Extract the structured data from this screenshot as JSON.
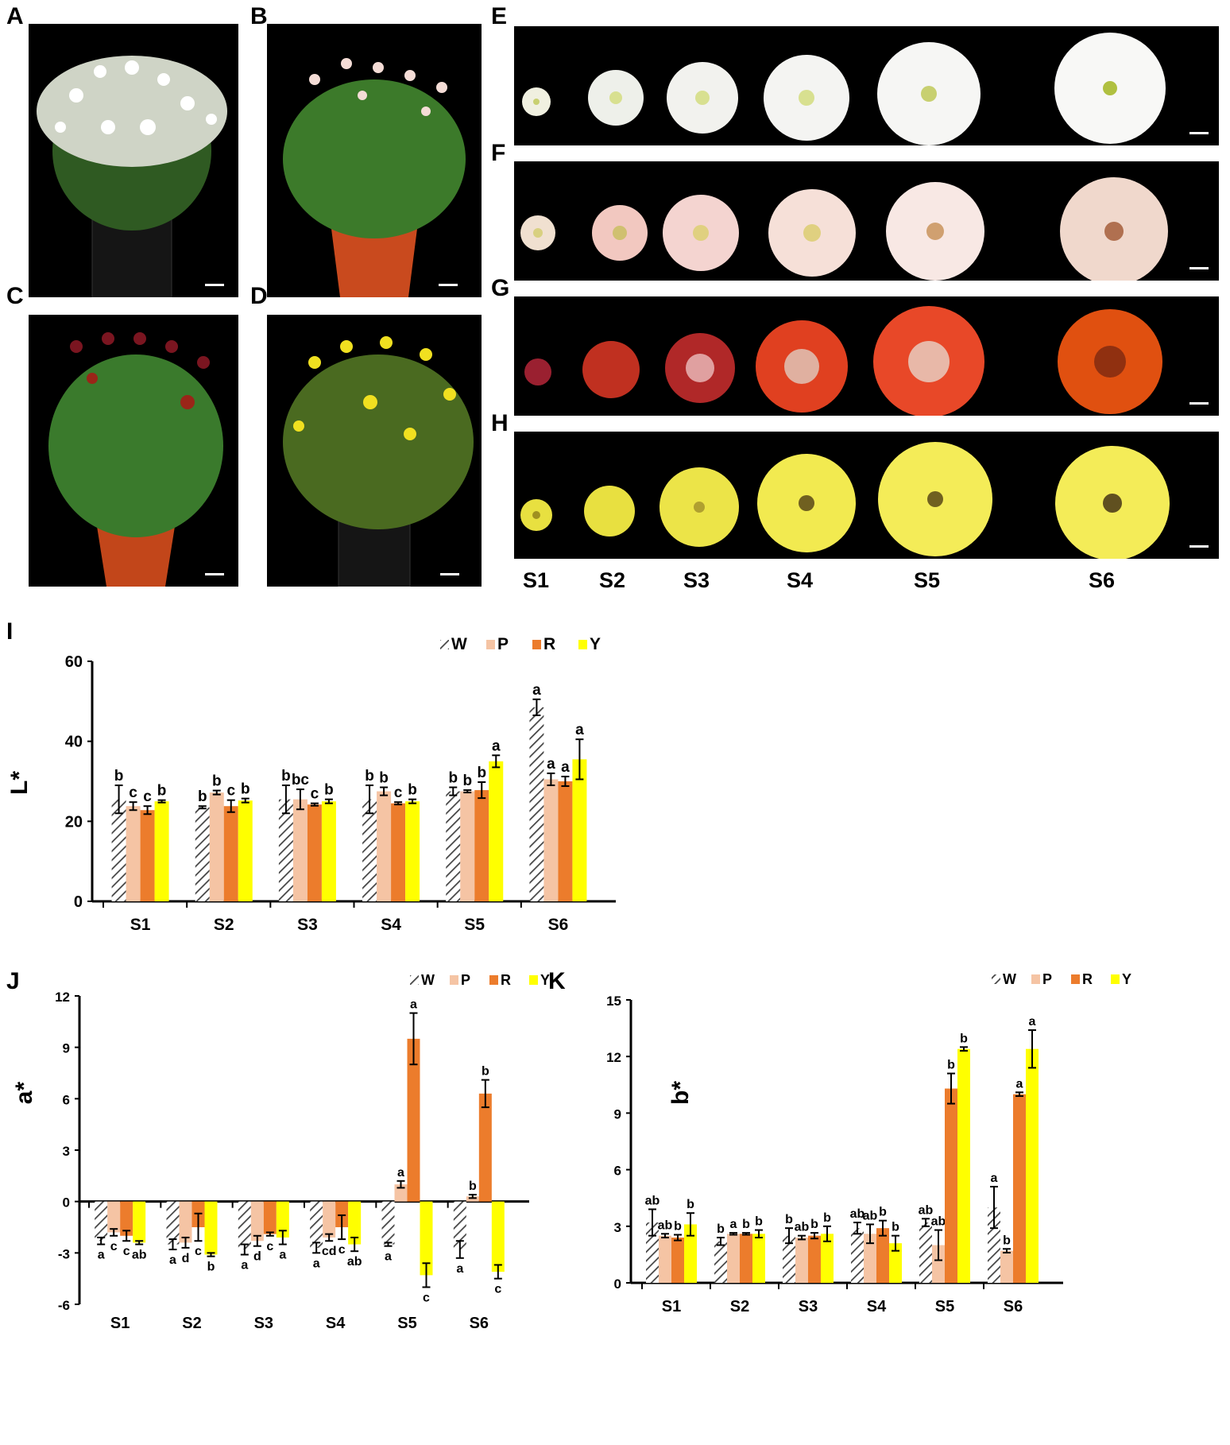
{
  "panel_letters": [
    "A",
    "B",
    "C",
    "D",
    "E",
    "F",
    "G",
    "H",
    "I",
    "J",
    "K"
  ],
  "stage_labels": [
    "S1",
    "S2",
    "S3",
    "S4",
    "S5",
    "S6"
  ],
  "legend": [
    "W",
    "P",
    "R",
    "Y"
  ],
  "colors": {
    "W": "#404040",
    "P": "#f5c4a4",
    "R": "#ec7c2c",
    "Y": "#ffff00",
    "ink": "#000000",
    "photo_bg": "#000000"
  },
  "photos": {
    "plants": [
      {
        "panel": "A",
        "flower": "white",
        "pot": "black"
      },
      {
        "panel": "B",
        "flower": "pink",
        "pot": "terracotta"
      },
      {
        "panel": "C",
        "flower": "red",
        "pot": "terracotta"
      },
      {
        "panel": "D",
        "flower": "yellow",
        "pot": "black"
      }
    ],
    "flower_rows": [
      {
        "panel": "E",
        "color": "white"
      },
      {
        "panel": "F",
        "color": "pink"
      },
      {
        "panel": "G",
        "color": "red-orange"
      },
      {
        "panel": "H",
        "color": "yellow"
      }
    ]
  },
  "chart_data": [
    {
      "panel": "I",
      "type": "bar",
      "ylabel": "L*",
      "xlabel": "",
      "title": "",
      "categories": [
        "S1",
        "S2",
        "S3",
        "S4",
        "S5",
        "S6"
      ],
      "ylim": [
        0,
        60
      ],
      "yticks": [
        0,
        20,
        40,
        60
      ],
      "yticklabels": [
        "0",
        "20",
        "40",
        "60"
      ],
      "legend_position": "top-center",
      "grid": false,
      "series": [
        {
          "name": "W",
          "values": [
            25.5,
            23.5,
            25.5,
            25.5,
            27.5,
            48.5
          ],
          "errors": [
            3.5,
            0.3,
            3.5,
            3.5,
            1.0,
            2.0
          ],
          "letters": [
            "b",
            "b",
            "b",
            "b",
            "b",
            "a"
          ]
        },
        {
          "name": "P",
          "values": [
            23.8,
            27.2,
            25.5,
            27.5,
            27.5,
            30.5
          ],
          "errors": [
            1.0,
            0.5,
            2.5,
            1.0,
            0.3,
            1.5
          ],
          "letters": [
            "c",
            "b",
            "bc",
            "b",
            "b",
            "a"
          ]
        },
        {
          "name": "R",
          "values": [
            22.8,
            23.8,
            24.2,
            24.5,
            27.8,
            30.0
          ],
          "errors": [
            1.0,
            1.5,
            0.3,
            0.3,
            2.0,
            1.2
          ],
          "letters": [
            "c",
            "c",
            "c",
            "c",
            "b",
            "a"
          ]
        },
        {
          "name": "Y",
          "values": [
            25.0,
            25.2,
            25.0,
            25.0,
            35.0,
            35.5
          ],
          "errors": [
            0.3,
            0.5,
            0.5,
            0.5,
            1.5,
            5.0
          ],
          "letters": [
            "b",
            "b",
            "b",
            "b",
            "a",
            "a"
          ]
        }
      ]
    },
    {
      "panel": "J",
      "type": "bar",
      "ylabel": "a*",
      "xlabel": "",
      "title": "",
      "categories": [
        "S1",
        "S2",
        "S3",
        "S4",
        "S5",
        "S6"
      ],
      "ylim": [
        -6,
        12
      ],
      "yticks": [
        -6,
        -3,
        0,
        3,
        6,
        9,
        12
      ],
      "yticklabels": [
        "-6",
        "-3",
        "0",
        "3",
        "6",
        "9",
        "12"
      ],
      "legend_position": "top-center",
      "grid": false,
      "series": [
        {
          "name": "W",
          "values": [
            -2.3,
            -2.5,
            -2.8,
            -2.7,
            -2.5,
            -2.8
          ],
          "errors": [
            0.2,
            0.3,
            0.3,
            0.3,
            0.1,
            0.5
          ],
          "letters": [
            "a",
            "a",
            "a",
            "a",
            "a",
            "a"
          ]
        },
        {
          "name": "P",
          "values": [
            -1.8,
            -2.4,
            -2.3,
            -2.1,
            1.0,
            0.3
          ],
          "errors": [
            0.2,
            0.3,
            0.3,
            0.2,
            0.2,
            0.1
          ],
          "letters": [
            "c",
            "d",
            "d",
            "cd",
            "a",
            "b"
          ]
        },
        {
          "name": "R",
          "values": [
            -2.0,
            -1.5,
            -1.9,
            -1.5,
            9.5,
            6.3
          ],
          "errors": [
            0.3,
            0.8,
            0.1,
            0.7,
            1.5,
            0.8
          ],
          "letters": [
            "c",
            "c",
            "c",
            "c",
            "a",
            "b"
          ]
        },
        {
          "name": "Y",
          "values": [
            -2.4,
            -3.1,
            -2.1,
            -2.5,
            -4.3,
            -4.1
          ],
          "errors": [
            0.1,
            0.1,
            0.4,
            0.4,
            0.7,
            0.4
          ],
          "letters": [
            "ab",
            "b",
            "a",
            "ab",
            "c",
            "c"
          ]
        }
      ]
    },
    {
      "panel": "K",
      "type": "bar",
      "ylabel": "b*",
      "xlabel": "",
      "title": "",
      "categories": [
        "S1",
        "S2",
        "S3",
        "S4",
        "S5",
        "S6"
      ],
      "ylim": [
        0,
        15
      ],
      "yticks": [
        0,
        3,
        6,
        9,
        12,
        15
      ],
      "yticklabels": [
        "0",
        "3",
        "6",
        "9",
        "12",
        "15"
      ],
      "legend_position": "top-center",
      "grid": false,
      "series": [
        {
          "name": "W",
          "values": [
            3.2,
            2.2,
            2.5,
            2.9,
            3.2,
            4.0
          ],
          "errors": [
            0.7,
            0.2,
            0.4,
            0.3,
            0.2,
            1.1
          ],
          "letters": [
            "ab",
            "b",
            "b",
            "ab",
            "ab",
            "a"
          ]
        },
        {
          "name": "P",
          "values": [
            2.5,
            2.6,
            2.4,
            2.6,
            2.0,
            1.7
          ],
          "errors": [
            0.1,
            0.05,
            0.1,
            0.5,
            0.8,
            0.1
          ],
          "letters": [
            "ab",
            "a",
            "ab",
            "ab",
            "ab",
            "b"
          ]
        },
        {
          "name": "R",
          "values": [
            2.4,
            2.6,
            2.5,
            2.9,
            10.3,
            10.0
          ],
          "errors": [
            0.15,
            0.05,
            0.15,
            0.4,
            0.8,
            0.1
          ],
          "letters": [
            "b",
            "b",
            "b",
            "b",
            "b",
            "a"
          ]
        },
        {
          "name": "Y",
          "values": [
            3.1,
            2.6,
            2.6,
            2.1,
            12.4,
            12.4
          ],
          "errors": [
            0.6,
            0.2,
            0.4,
            0.4,
            0.1,
            1.0
          ],
          "letters": [
            "b",
            "b",
            "b",
            "b",
            "b",
            "a"
          ]
        }
      ]
    }
  ]
}
